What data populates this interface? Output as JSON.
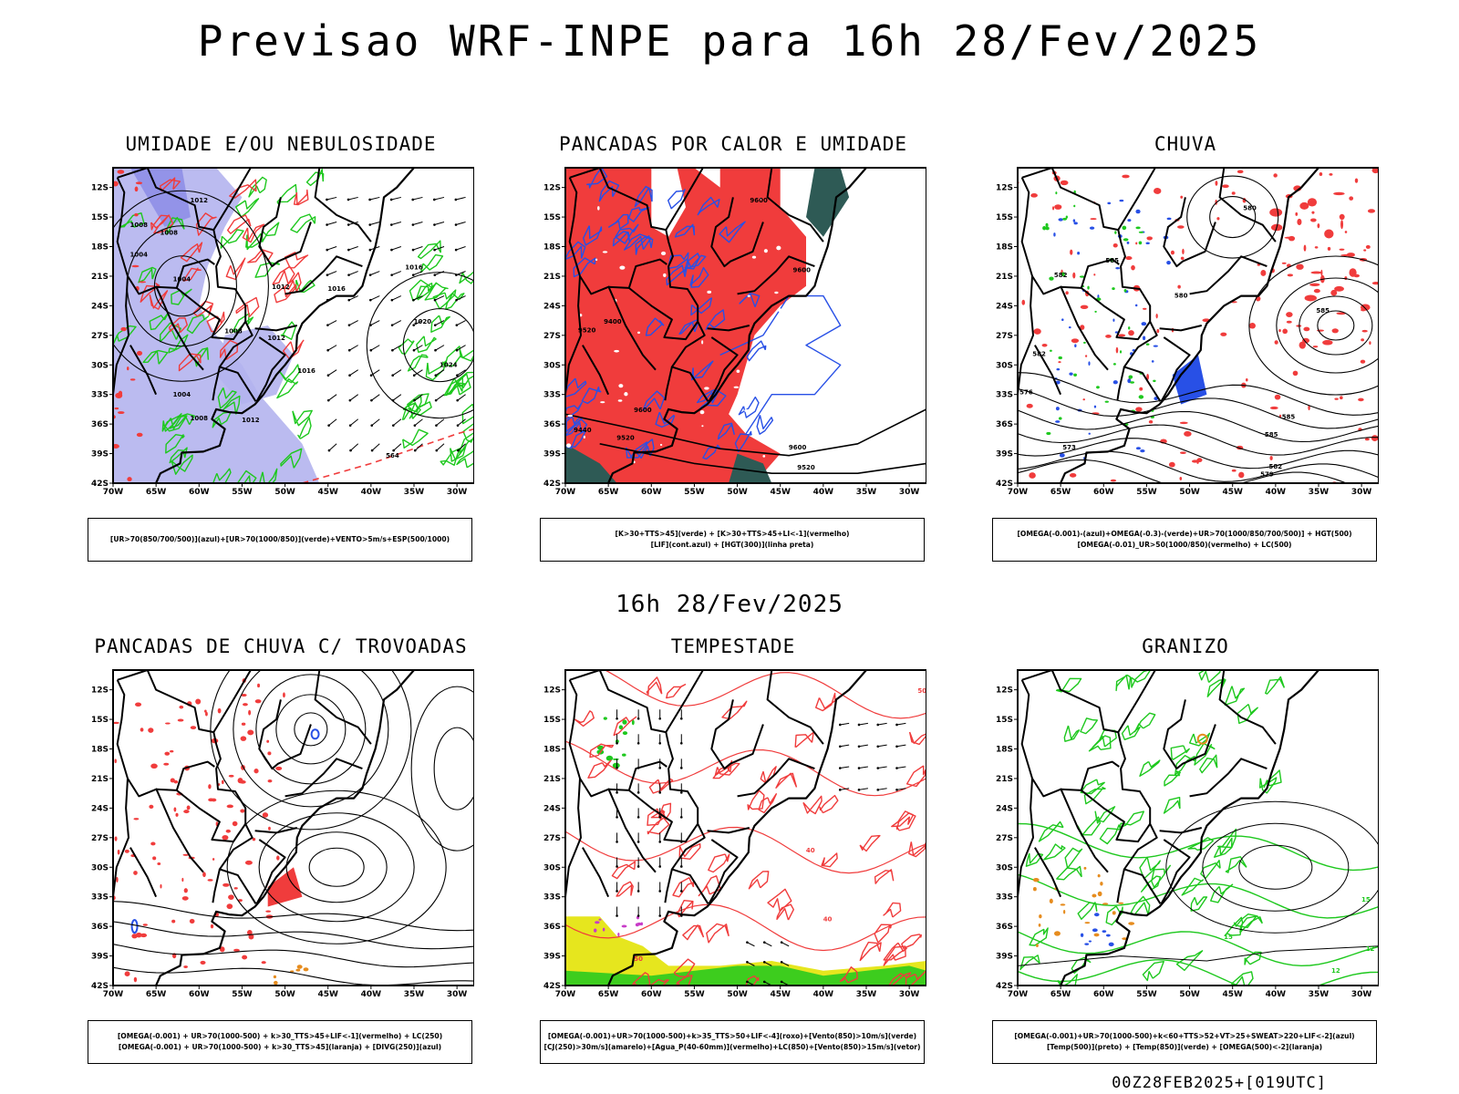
{
  "header": {
    "title": "Previsao WRF-INPE  para 16h 28/Fev/2025",
    "mid_title": "16h 28/Fev/2025",
    "footer": "00Z28FEB2025+[019UTC]"
  },
  "axes": {
    "lat_labels": [
      "12S",
      "15S",
      "18S",
      "21S",
      "24S",
      "27S",
      "30S",
      "33S",
      "36S",
      "39S",
      "42S"
    ],
    "lon_labels": [
      "70W",
      "65W",
      "60W",
      "55W",
      "50W",
      "45W",
      "40W",
      "35W",
      "30W"
    ]
  },
  "colors": {
    "blue": "#2850e6",
    "lavender": "#b4b4ee",
    "green": "#1ec81e",
    "red": "#f03c3c",
    "teal": "#2e5a55",
    "yellow": "#e6e61e",
    "orange": "#e68c1e",
    "purple": "#c83cc8",
    "black": "#000000"
  },
  "chart_data": [
    {
      "id": "p1",
      "type": "map",
      "title": "UMIDADE E/OU NEBULOSIDADE",
      "legend": [
        "[UR>70(850/700/500)](azul)+[UR>70(1000/850)](verde)+VENTO>5m/s+ESP(500/1000)"
      ],
      "xlim": [
        -70,
        -28
      ],
      "ylim": [
        -42,
        -10
      ],
      "contour_labels": [
        {
          "text": "1012",
          "lon": -60,
          "lat": -13.5
        },
        {
          "text": "1008",
          "lon": -67,
          "lat": -16
        },
        {
          "text": "1008",
          "lon": -63.5,
          "lat": -16.8
        },
        {
          "text": "1004",
          "lon": -67,
          "lat": -19
        },
        {
          "text": "1004",
          "lon": -62,
          "lat": -21.5
        },
        {
          "text": "1012",
          "lon": -50.5,
          "lat": -22.3
        },
        {
          "text": "1016",
          "lon": -44,
          "lat": -22.5
        },
        {
          "text": "1016",
          "lon": -35,
          "lat": -20.3
        },
        {
          "text": "1020",
          "lon": -34,
          "lat": -25.8
        },
        {
          "text": "1008",
          "lon": -56,
          "lat": -26.8
        },
        {
          "text": "1012",
          "lon": -51,
          "lat": -27.5
        },
        {
          "text": "1016",
          "lon": -47.5,
          "lat": -30.8
        },
        {
          "text": "1024",
          "lon": -31,
          "lat": -30.2
        },
        {
          "text": "1004",
          "lon": -62,
          "lat": -33.2
        },
        {
          "text": "1008",
          "lon": -60,
          "lat": -35.6
        },
        {
          "text": "1012",
          "lon": -54,
          "lat": -35.8
        },
        {
          "text": "564",
          "lon": -37.5,
          "lat": -39.4
        }
      ]
    },
    {
      "id": "p2",
      "type": "map",
      "title": "PANCADAS POR CALOR E UMIDADE",
      "legend": [
        "[K>30+TTS>45](verde) + [K>30+TTS>45+LI<-1](vermelho)",
        "[LIF](cont.azul) + [HGT(300)](linha preta)"
      ],
      "xlim": [
        -70,
        -28
      ],
      "ylim": [
        -42,
        -10
      ],
      "contour_labels": [
        {
          "text": "9600",
          "lon": -47.5,
          "lat": -13.5
        },
        {
          "text": "9600",
          "lon": -42.5,
          "lat": -20.6
        },
        {
          "text": "9400",
          "lon": -64.5,
          "lat": -25.8
        },
        {
          "text": "9520",
          "lon": -67.5,
          "lat": -26.7
        },
        {
          "text": "9600",
          "lon": -61,
          "lat": -34.8
        },
        {
          "text": "9440",
          "lon": -68,
          "lat": -36.8
        },
        {
          "text": "9520",
          "lon": -63,
          "lat": -37.6
        },
        {
          "text": "9600",
          "lon": -43,
          "lat": -38.6
        },
        {
          "text": "9520",
          "lon": -42,
          "lat": -40.6
        }
      ]
    },
    {
      "id": "p3",
      "type": "map",
      "title": "CHUVA",
      "legend": [
        "[OMEGA(-0.001)-(azul)+OMEGA(-0.3)-(verde)+UR>70(1000/850/700/500)] + HGT(500)",
        "[OMEGA(-0.01)_UR>50(1000/850)(vermelho) + LC(500)"
      ],
      "xlim": [
        -70,
        -28
      ],
      "ylim": [
        -42,
        -10
      ],
      "contour_labels": [
        {
          "text": "580",
          "lon": -43,
          "lat": -14.3
        },
        {
          "text": "580",
          "lon": -51,
          "lat": -23.2
        },
        {
          "text": "585",
          "lon": -34.5,
          "lat": -24.7
        },
        {
          "text": "585",
          "lon": -59,
          "lat": -19.6
        },
        {
          "text": "582",
          "lon": -65,
          "lat": -21.1
        },
        {
          "text": "582",
          "lon": -67.5,
          "lat": -29.1
        },
        {
          "text": "576",
          "lon": -69,
          "lat": -33
        },
        {
          "text": "573",
          "lon": -64,
          "lat": -38.6
        },
        {
          "text": "585",
          "lon": -38.5,
          "lat": -35.5
        },
        {
          "text": "585",
          "lon": -40.5,
          "lat": -37.3
        },
        {
          "text": "582",
          "lon": -40,
          "lat": -40.5
        },
        {
          "text": "579",
          "lon": -41,
          "lat": -41.3
        }
      ]
    },
    {
      "id": "p4",
      "type": "map",
      "title": "PANCADAS DE CHUVA C/ TROVOADAS",
      "legend": [
        "[OMEGA(-0.001) + UR>70(1000-500) + k>30_TTS>45+LIF<-1](vermelho) + LC(250)",
        "[OMEGA(-0.001) + UR>70(1000-500) + k>30_TTS>45](laranja) + [DIVG(250)](azul)"
      ],
      "xlim": [
        -70,
        -28
      ],
      "ylim": [
        -42,
        -10
      ],
      "contour_labels": []
    },
    {
      "id": "p5",
      "type": "map",
      "title": "TEMPESTADE",
      "legend": [
        "[OMEGA(-0.001)+UR>70(1000-500)+k>35_TTS>50+LIF<-4](roxo)+[Vento(850)>10m/s](verde)",
        "[CJ(250)>30m/s](amarelo)+[Agua_P(40-60mm)](vermelho)+LC(850)+[Vento(850)>15m/s](vetor)"
      ],
      "xlim": [
        -70,
        -28
      ],
      "ylim": [
        -42,
        -10
      ],
      "contour_labels": [
        {
          "text": "50",
          "lon": -28.5,
          "lat": -12.3
        },
        {
          "text": "40",
          "lon": -41.5,
          "lat": -28.5
        },
        {
          "text": "40",
          "lon": -39.5,
          "lat": -35.5
        },
        {
          "text": "50",
          "lon": -61.5,
          "lat": -39.5
        }
      ]
    },
    {
      "id": "p6",
      "type": "map",
      "title": "GRANIZO",
      "legend": [
        "[OMEGA(-0.001)+UR>70(1000-500)+k<60+TTS>52+VT>25+SWEAT>220+LIF<-2](azul)",
        "[Temp(500)](preto) + [Temp(850)](verde) + [OMEGA(500)<-2](laranja)"
      ],
      "xlim": [
        -70,
        -28
      ],
      "ylim": [
        -42,
        -10
      ],
      "contour_labels": [
        {
          "text": "15",
          "lon": -29.5,
          "lat": -33.5
        },
        {
          "text": "15",
          "lon": -45.5,
          "lat": -37.3
        },
        {
          "text": "12",
          "lon": -29,
          "lat": -38.5
        },
        {
          "text": "12",
          "lon": -33,
          "lat": -40.7
        }
      ]
    }
  ]
}
